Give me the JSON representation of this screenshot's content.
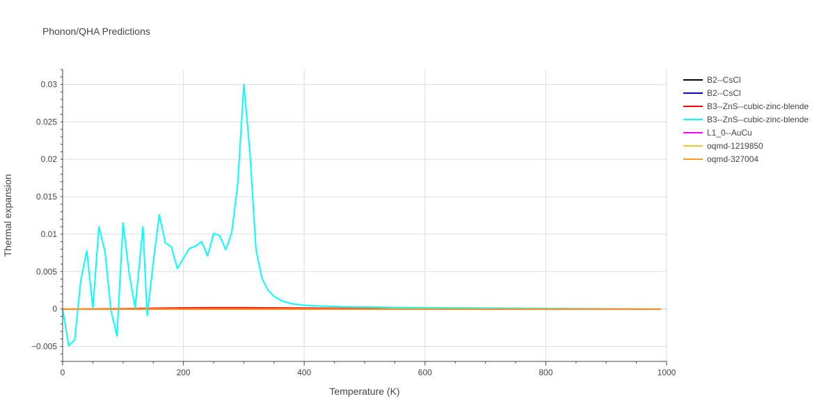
{
  "chart_data": {
    "type": "line",
    "title": "Phonon/QHA Predictions",
    "xlabel": "Temperature (K)",
    "ylabel": "Thermal expansion",
    "xlim": [
      0,
      1000
    ],
    "ylim": [
      -0.007,
      0.032
    ],
    "x_ticks": [
      0,
      200,
      400,
      600,
      800,
      1000
    ],
    "x_tick_labels": [
      "0",
      "200",
      "400",
      "600",
      "800",
      "1000"
    ],
    "y_ticks": [
      -0.005,
      0,
      0.005,
      0.01,
      0.015,
      0.02,
      0.025,
      0.03
    ],
    "y_tick_labels": [
      "−0.005",
      "0",
      "0.005",
      "0.01",
      "0.015",
      "0.02",
      "0.025",
      "0.03"
    ],
    "grid": true,
    "legend_position": "top-right",
    "series": [
      {
        "name": "B2--CsCl",
        "color": "#000000",
        "x": [
          0,
          100,
          200,
          300,
          400,
          500,
          600,
          700,
          800,
          900,
          990
        ],
        "y": [
          0,
          0,
          0,
          0,
          0,
          0,
          0,
          0,
          0,
          0,
          0
        ]
      },
      {
        "name": "B2--CsCl",
        "color": "#0000ff",
        "x": [
          0,
          100,
          200,
          300,
          400,
          500,
          600,
          700,
          800,
          900,
          990
        ],
        "y": [
          0,
          0,
          0,
          0,
          0,
          0,
          0,
          0,
          0,
          0,
          0
        ]
      },
      {
        "name": "B3--ZnS--cubic-zinc-blende",
        "color": "#ff0000",
        "x": [
          0,
          50,
          100,
          150,
          200,
          250,
          300,
          350,
          400,
          500,
          600,
          700,
          800,
          900,
          990
        ],
        "y": [
          0,
          2e-05,
          5e-05,
          0.0001,
          0.00015,
          0.00018,
          0.00017,
          0.00015,
          0.00012,
          8e-05,
          6e-05,
          4e-05,
          2e-05,
          1e-05,
          0
        ]
      },
      {
        "name": "B3--ZnS--cubic-zinc-blende",
        "color": "#00ffff",
        "x": [
          0,
          10,
          20,
          30,
          40,
          50,
          60,
          70,
          80,
          90,
          100,
          110,
          120,
          133,
          140,
          150,
          160,
          170,
          180,
          190,
          200,
          210,
          220,
          230,
          240,
          250,
          260,
          270,
          280,
          290,
          300,
          310,
          320,
          330,
          340,
          350,
          360,
          370,
          380,
          390,
          400,
          420,
          440,
          460,
          480,
          500,
          550,
          600,
          650,
          700,
          750,
          800,
          850,
          900,
          950,
          990
        ],
        "y": [
          0,
          -0.0049,
          -0.0041,
          0.0038,
          0.0078,
          0.0001,
          0.011,
          0.0077,
          -0.0002,
          -0.0036,
          0.0115,
          0.0048,
          0.0001,
          0.011,
          -0.0009,
          0.0062,
          0.0126,
          0.0088,
          0.0083,
          0.0054,
          0.0068,
          0.0081,
          0.0084,
          0.009,
          0.0071,
          0.0101,
          0.0098,
          0.0079,
          0.0102,
          0.0168,
          0.03,
          0.021,
          0.008,
          0.0041,
          0.0025,
          0.0017,
          0.0012,
          0.0009,
          0.0007,
          0.0006,
          0.0005,
          0.0004,
          0.00035,
          0.0003,
          0.00028,
          0.00025,
          0.0002,
          0.00018,
          0.00015,
          0.00013,
          0.0001,
          8e-05,
          6e-05,
          4e-05,
          2e-05,
          1e-05
        ]
      },
      {
        "name": "L1_0--AuCu",
        "color": "#ff00ff",
        "x": [
          0,
          100,
          200,
          300,
          400,
          500,
          600,
          700,
          800,
          900,
          990
        ],
        "y": [
          0,
          0,
          0,
          0,
          0,
          0,
          0,
          0,
          0,
          0,
          0
        ]
      },
      {
        "name": "oqmd-1219850",
        "color": "#fcc128",
        "x": [
          0,
          100,
          200,
          300,
          400,
          500,
          600,
          700,
          800,
          900,
          990
        ],
        "y": [
          0,
          0,
          0,
          0,
          0,
          0,
          0,
          0,
          0,
          0,
          0
        ]
      },
      {
        "name": "oqmd-327004",
        "color": "#ff9a1e",
        "x": [
          0,
          100,
          200,
          300,
          400,
          500,
          600,
          700,
          800,
          900,
          990
        ],
        "y": [
          0,
          0,
          0,
          0,
          0,
          0,
          0,
          0,
          0,
          0,
          0
        ]
      }
    ]
  }
}
